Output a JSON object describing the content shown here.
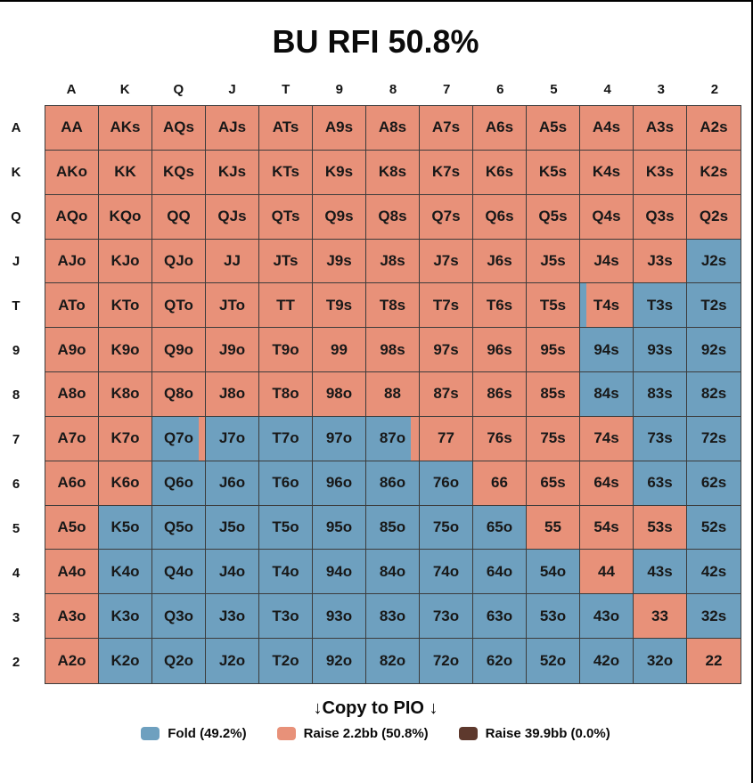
{
  "title": "BU RFI 50.8%",
  "ranks": [
    "A",
    "K",
    "Q",
    "J",
    "T",
    "9",
    "8",
    "7",
    "6",
    "5",
    "4",
    "3",
    "2"
  ],
  "colors": {
    "fold": "#6EA0BF",
    "raise": "#E89179",
    "raise_big": "#5E392D",
    "grid_border": "#3C3C3C",
    "text": "#141414",
    "background": "#FFFFFF",
    "frame": "#000000"
  },
  "cell_codes": {
    "R": "raise",
    "F": "fold",
    "M": "mixed (third value = fold % width from left)"
  },
  "grid_rows": [
    [
      [
        "AA",
        "R"
      ],
      [
        "AKs",
        "R"
      ],
      [
        "AQs",
        "R"
      ],
      [
        "AJs",
        "R"
      ],
      [
        "ATs",
        "R"
      ],
      [
        "A9s",
        "R"
      ],
      [
        "A8s",
        "R"
      ],
      [
        "A7s",
        "R"
      ],
      [
        "A6s",
        "R"
      ],
      [
        "A5s",
        "R"
      ],
      [
        "A4s",
        "R"
      ],
      [
        "A3s",
        "R"
      ],
      [
        "A2s",
        "R"
      ]
    ],
    [
      [
        "AKo",
        "R"
      ],
      [
        "KK",
        "R"
      ],
      [
        "KQs",
        "R"
      ],
      [
        "KJs",
        "R"
      ],
      [
        "KTs",
        "R"
      ],
      [
        "K9s",
        "R"
      ],
      [
        "K8s",
        "R"
      ],
      [
        "K7s",
        "R"
      ],
      [
        "K6s",
        "R"
      ],
      [
        "K5s",
        "R"
      ],
      [
        "K4s",
        "R"
      ],
      [
        "K3s",
        "R"
      ],
      [
        "K2s",
        "R"
      ]
    ],
    [
      [
        "AQo",
        "R"
      ],
      [
        "KQo",
        "R"
      ],
      [
        "QQ",
        "R"
      ],
      [
        "QJs",
        "R"
      ],
      [
        "QTs",
        "R"
      ],
      [
        "Q9s",
        "R"
      ],
      [
        "Q8s",
        "R"
      ],
      [
        "Q7s",
        "R"
      ],
      [
        "Q6s",
        "R"
      ],
      [
        "Q5s",
        "R"
      ],
      [
        "Q4s",
        "R"
      ],
      [
        "Q3s",
        "R"
      ],
      [
        "Q2s",
        "R"
      ]
    ],
    [
      [
        "AJo",
        "R"
      ],
      [
        "KJo",
        "R"
      ],
      [
        "QJo",
        "R"
      ],
      [
        "JJ",
        "R"
      ],
      [
        "JTs",
        "R"
      ],
      [
        "J9s",
        "R"
      ],
      [
        "J8s",
        "R"
      ],
      [
        "J7s",
        "R"
      ],
      [
        "J6s",
        "R"
      ],
      [
        "J5s",
        "R"
      ],
      [
        "J4s",
        "R"
      ],
      [
        "J3s",
        "R"
      ],
      [
        "J2s",
        "F"
      ]
    ],
    [
      [
        "ATo",
        "R"
      ],
      [
        "KTo",
        "R"
      ],
      [
        "QTo",
        "R"
      ],
      [
        "JTo",
        "R"
      ],
      [
        "TT",
        "R"
      ],
      [
        "T9s",
        "R"
      ],
      [
        "T8s",
        "R"
      ],
      [
        "T7s",
        "R"
      ],
      [
        "T6s",
        "R"
      ],
      [
        "T5s",
        "R"
      ],
      [
        "T4s",
        "M",
        12
      ],
      [
        "T3s",
        "F"
      ],
      [
        "T2s",
        "F"
      ]
    ],
    [
      [
        "A9o",
        "R"
      ],
      [
        "K9o",
        "R"
      ],
      [
        "Q9o",
        "R"
      ],
      [
        "J9o",
        "R"
      ],
      [
        "T9o",
        "R"
      ],
      [
        "99",
        "R"
      ],
      [
        "98s",
        "R"
      ],
      [
        "97s",
        "R"
      ],
      [
        "96s",
        "R"
      ],
      [
        "95s",
        "R"
      ],
      [
        "94s",
        "F"
      ],
      [
        "93s",
        "F"
      ],
      [
        "92s",
        "F"
      ]
    ],
    [
      [
        "A8o",
        "R"
      ],
      [
        "K8o",
        "R"
      ],
      [
        "Q8o",
        "R"
      ],
      [
        "J8o",
        "R"
      ],
      [
        "T8o",
        "R"
      ],
      [
        "98o",
        "R"
      ],
      [
        "88",
        "R"
      ],
      [
        "87s",
        "R"
      ],
      [
        "86s",
        "R"
      ],
      [
        "85s",
        "R"
      ],
      [
        "84s",
        "F"
      ],
      [
        "83s",
        "F"
      ],
      [
        "82s",
        "F"
      ]
    ],
    [
      [
        "A7o",
        "R"
      ],
      [
        "K7o",
        "R"
      ],
      [
        "Q7o",
        "M",
        88
      ],
      [
        "J7o",
        "F"
      ],
      [
        "T7o",
        "F"
      ],
      [
        "97o",
        "F"
      ],
      [
        "87o",
        "M",
        85
      ],
      [
        "77",
        "R"
      ],
      [
        "76s",
        "R"
      ],
      [
        "75s",
        "R"
      ],
      [
        "74s",
        "R"
      ],
      [
        "73s",
        "F"
      ],
      [
        "72s",
        "F"
      ]
    ],
    [
      [
        "A6o",
        "R"
      ],
      [
        "K6o",
        "R"
      ],
      [
        "Q6o",
        "F"
      ],
      [
        "J6o",
        "F"
      ],
      [
        "T6o",
        "F"
      ],
      [
        "96o",
        "F"
      ],
      [
        "86o",
        "F"
      ],
      [
        "76o",
        "F"
      ],
      [
        "66",
        "R"
      ],
      [
        "65s",
        "R"
      ],
      [
        "64s",
        "R"
      ],
      [
        "63s",
        "F"
      ],
      [
        "62s",
        "F"
      ]
    ],
    [
      [
        "A5o",
        "R"
      ],
      [
        "K5o",
        "F"
      ],
      [
        "Q5o",
        "F"
      ],
      [
        "J5o",
        "F"
      ],
      [
        "T5o",
        "F"
      ],
      [
        "95o",
        "F"
      ],
      [
        "85o",
        "F"
      ],
      [
        "75o",
        "F"
      ],
      [
        "65o",
        "F"
      ],
      [
        "55",
        "R"
      ],
      [
        "54s",
        "R"
      ],
      [
        "53s",
        "R"
      ],
      [
        "52s",
        "F"
      ]
    ],
    [
      [
        "A4o",
        "R"
      ],
      [
        "K4o",
        "F"
      ],
      [
        "Q4o",
        "F"
      ],
      [
        "J4o",
        "F"
      ],
      [
        "T4o",
        "F"
      ],
      [
        "94o",
        "F"
      ],
      [
        "84o",
        "F"
      ],
      [
        "74o",
        "F"
      ],
      [
        "64o",
        "F"
      ],
      [
        "54o",
        "F"
      ],
      [
        "44",
        "R"
      ],
      [
        "43s",
        "F"
      ],
      [
        "42s",
        "F"
      ]
    ],
    [
      [
        "A3o",
        "R"
      ],
      [
        "K3o",
        "F"
      ],
      [
        "Q3o",
        "F"
      ],
      [
        "J3o",
        "F"
      ],
      [
        "T3o",
        "F"
      ],
      [
        "93o",
        "F"
      ],
      [
        "83o",
        "F"
      ],
      [
        "73o",
        "F"
      ],
      [
        "63o",
        "F"
      ],
      [
        "53o",
        "F"
      ],
      [
        "43o",
        "F"
      ],
      [
        "33",
        "R"
      ],
      [
        "32s",
        "F"
      ]
    ],
    [
      [
        "A2o",
        "R"
      ],
      [
        "K2o",
        "F"
      ],
      [
        "Q2o",
        "F"
      ],
      [
        "J2o",
        "F"
      ],
      [
        "T2o",
        "F"
      ],
      [
        "92o",
        "F"
      ],
      [
        "82o",
        "F"
      ],
      [
        "72o",
        "F"
      ],
      [
        "62o",
        "F"
      ],
      [
        "52o",
        "F"
      ],
      [
        "42o",
        "F"
      ],
      [
        "32o",
        "F"
      ],
      [
        "22",
        "R"
      ]
    ]
  ],
  "copy_to_pio_label": "↓Copy to PIO ↓",
  "legend": [
    {
      "label": "Fold (49.2%)",
      "color_key": "fold"
    },
    {
      "label": "Raise 2.2bb (50.8%)",
      "color_key": "raise"
    },
    {
      "label": "Raise 39.9bb (0.0%)",
      "color_key": "raise_big"
    }
  ]
}
